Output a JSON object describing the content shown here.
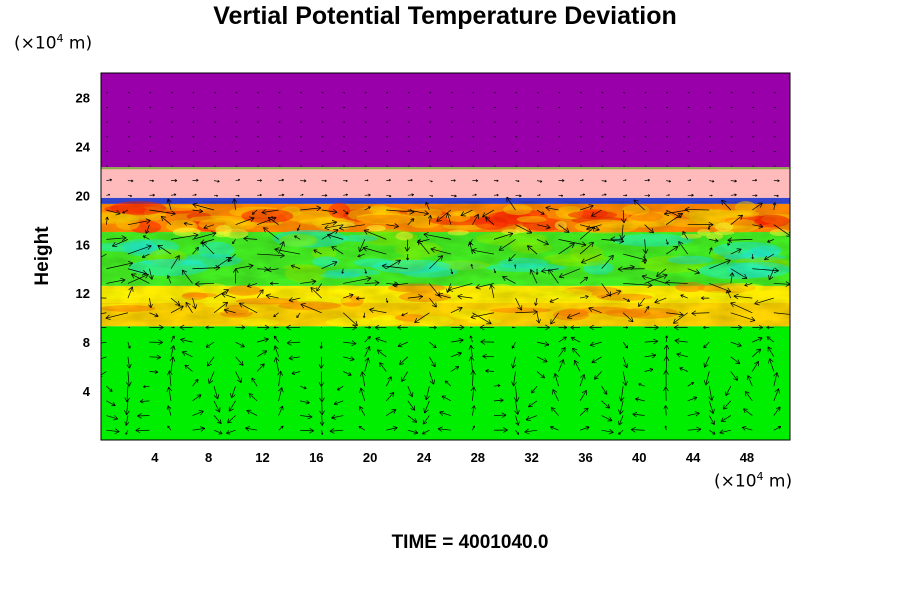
{
  "chart_data": {
    "type": "heatmap",
    "title": "Vertial Potential Temperature Deviation",
    "ylabel": "Height",
    "y_unit": {
      "prefix": "(×10",
      "exp": "4",
      "suffix": " m)"
    },
    "x_unit": {
      "prefix": "(×10",
      "exp": "4",
      "suffix": " m)"
    },
    "xlim": [
      0,
      51.2
    ],
    "ylim": [
      0,
      30
    ],
    "x_ticks": [
      4,
      8,
      12,
      16,
      20,
      24,
      28,
      32,
      36,
      40,
      44,
      48
    ],
    "y_ticks": [
      4,
      8,
      12,
      16,
      20,
      24,
      28
    ],
    "layers": [
      {
        "name": "lower",
        "y0": 0,
        "y1": 9.3,
        "color": "#00ee00"
      },
      {
        "name": "band-low",
        "y0": 9.3,
        "y1": 11.2,
        "color": "#ffd400"
      },
      {
        "name": "band-mid",
        "y0": 11.2,
        "y1": 12.6,
        "color": "#ffee00"
      },
      {
        "name": "mid",
        "y0": 12.6,
        "y1": 17.0,
        "color": "#44ee22"
      },
      {
        "name": "upper-band",
        "y0": 17.0,
        "y1": 19.3,
        "color": "#ff8800"
      },
      {
        "name": "thin-blue",
        "y0": 19.3,
        "y1": 19.8,
        "color": "#3344cc"
      },
      {
        "name": "pink",
        "y0": 19.8,
        "y1": 22.3,
        "color": "#ffbbbb"
      },
      {
        "name": "top",
        "y0": 22.3,
        "y1": 30,
        "color": "#9900aa"
      }
    ],
    "grid": false
  },
  "footer": {
    "time_prefix": "TIME = ",
    "time_value": "4001040.0"
  }
}
